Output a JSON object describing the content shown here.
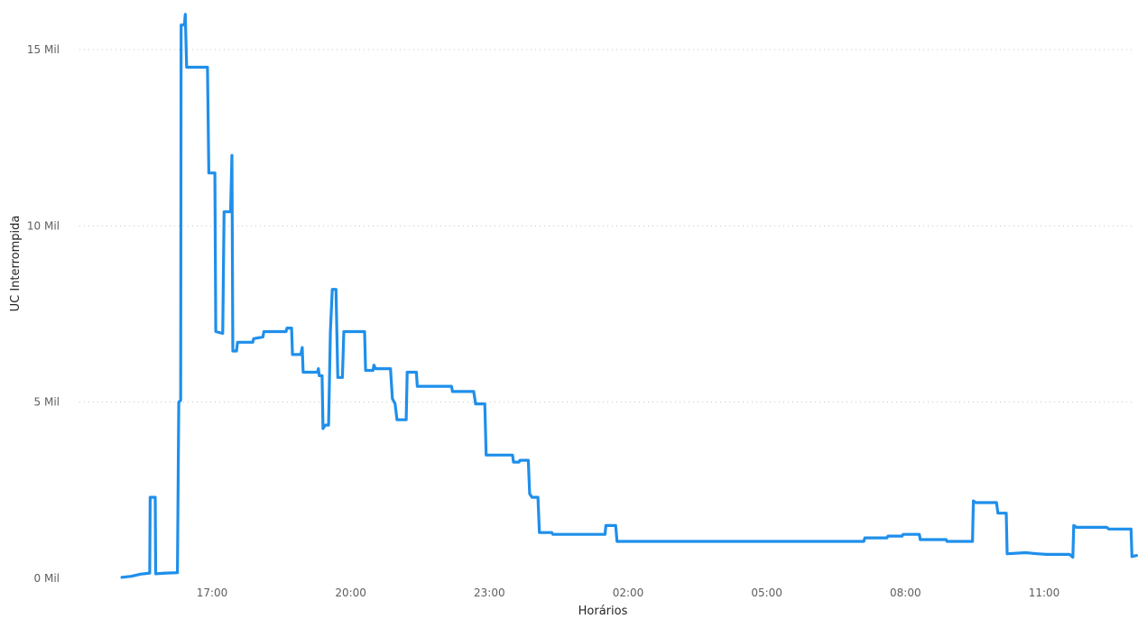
{
  "chart_data": {
    "type": "line",
    "xlabel": "Horários",
    "ylabel": "UC Interrompida",
    "y_ticks": [
      {
        "value": 0,
        "label": "0 Mil"
      },
      {
        "value": 5000,
        "label": "5 Mil"
      },
      {
        "value": 10000,
        "label": "10 Mil"
      },
      {
        "value": 15000,
        "label": "15 Mil"
      }
    ],
    "ylim": [
      0,
      15500
    ],
    "x_unit": "hours since 00:00 of first day",
    "xlim": [
      14.8,
      35.65
    ],
    "x_ticks": [
      {
        "value": 17,
        "label": "17:00"
      },
      {
        "value": 20,
        "label": "20:00"
      },
      {
        "value": 23,
        "label": "23:00"
      },
      {
        "value": 26,
        "label": "02:00"
      },
      {
        "value": 29,
        "label": "05:00"
      },
      {
        "value": 32,
        "label": "08:00"
      },
      {
        "value": 35,
        "label": "11:00"
      }
    ],
    "grid": true,
    "color": "#1F8FEB",
    "series": [
      {
        "points": [
          [
            15.05,
            30
          ],
          [
            15.25,
            60
          ],
          [
            15.45,
            120
          ],
          [
            15.65,
            150
          ],
          [
            15.66,
            2300
          ],
          [
            15.77,
            2300
          ],
          [
            15.78,
            130
          ],
          [
            16.0,
            150
          ],
          [
            16.25,
            160
          ],
          [
            16.28,
            5000
          ],
          [
            16.32,
            5050
          ],
          [
            16.33,
            15700
          ],
          [
            16.4,
            15700
          ],
          [
            16.42,
            16000
          ],
          [
            16.45,
            14500
          ],
          [
            16.9,
            14500
          ],
          [
            16.93,
            11500
          ],
          [
            17.06,
            11500
          ],
          [
            17.08,
            7000
          ],
          [
            17.23,
            6950
          ],
          [
            17.26,
            10400
          ],
          [
            17.4,
            10400
          ],
          [
            17.43,
            12000
          ],
          [
            17.45,
            6450
          ],
          [
            17.53,
            6450
          ],
          [
            17.55,
            6700
          ],
          [
            17.88,
            6700
          ],
          [
            17.9,
            6800
          ],
          [
            18.1,
            6850
          ],
          [
            18.12,
            7000
          ],
          [
            18.6,
            7000
          ],
          [
            18.62,
            7100
          ],
          [
            18.72,
            7100
          ],
          [
            18.74,
            6350
          ],
          [
            18.92,
            6350
          ],
          [
            18.95,
            6550
          ],
          [
            18.97,
            5850
          ],
          [
            19.28,
            5850
          ],
          [
            19.3,
            5950
          ],
          [
            19.32,
            5750
          ],
          [
            19.38,
            5750
          ],
          [
            19.4,
            4250
          ],
          [
            19.45,
            4350
          ],
          [
            19.52,
            4350
          ],
          [
            19.56,
            7000
          ],
          [
            19.6,
            8200
          ],
          [
            19.68,
            8200
          ],
          [
            19.72,
            5700
          ],
          [
            19.82,
            5700
          ],
          [
            19.85,
            7000
          ],
          [
            20.3,
            7000
          ],
          [
            20.32,
            5900
          ],
          [
            20.48,
            5900
          ],
          [
            20.5,
            6050
          ],
          [
            20.54,
            5950
          ],
          [
            20.86,
            5950
          ],
          [
            20.9,
            5100
          ],
          [
            20.96,
            4950
          ],
          [
            21.0,
            4500
          ],
          [
            21.2,
            4500
          ],
          [
            21.22,
            5850
          ],
          [
            21.42,
            5850
          ],
          [
            21.44,
            5450
          ],
          [
            22.18,
            5450
          ],
          [
            22.2,
            5300
          ],
          [
            22.66,
            5300
          ],
          [
            22.7,
            4950
          ],
          [
            22.9,
            4950
          ],
          [
            22.93,
            3500
          ],
          [
            23.5,
            3500
          ],
          [
            23.52,
            3300
          ],
          [
            23.64,
            3300
          ],
          [
            23.66,
            3350
          ],
          [
            23.84,
            3350
          ],
          [
            23.87,
            2400
          ],
          [
            23.92,
            2300
          ],
          [
            24.05,
            2300
          ],
          [
            24.08,
            1300
          ],
          [
            24.35,
            1300
          ],
          [
            24.37,
            1250
          ],
          [
            25.5,
            1250
          ],
          [
            25.52,
            1500
          ],
          [
            25.73,
            1500
          ],
          [
            25.76,
            1050
          ],
          [
            31.1,
            1050
          ],
          [
            31.12,
            1150
          ],
          [
            31.6,
            1150
          ],
          [
            31.62,
            1200
          ],
          [
            31.93,
            1200
          ],
          [
            31.95,
            1250
          ],
          [
            32.3,
            1250
          ],
          [
            32.32,
            1100
          ],
          [
            32.88,
            1100
          ],
          [
            32.9,
            1050
          ],
          [
            33.45,
            1050
          ],
          [
            33.47,
            2200
          ],
          [
            33.52,
            2150
          ],
          [
            33.97,
            2150
          ],
          [
            34.0,
            1850
          ],
          [
            34.18,
            1850
          ],
          [
            34.2,
            700
          ],
          [
            34.6,
            730
          ],
          [
            34.85,
            700
          ],
          [
            35.05,
            680
          ],
          [
            35.55,
            680
          ],
          [
            35.62,
            600
          ],
          [
            35.64,
            1500
          ],
          [
            35.7,
            1450
          ],
          [
            36.35,
            1450
          ],
          [
            36.4,
            1400
          ],
          [
            36.88,
            1400
          ],
          [
            36.9,
            620
          ],
          [
            37.0,
            650
          ]
        ]
      }
    ]
  }
}
